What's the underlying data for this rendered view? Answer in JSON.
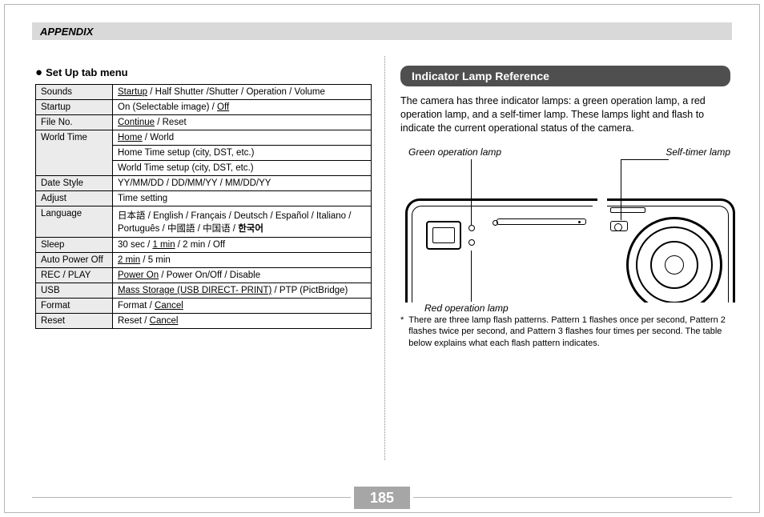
{
  "header": {
    "appendix": "APPENDIX"
  },
  "left": {
    "subhead": "Set Up tab menu",
    "rows": [
      {
        "label": "Sounds",
        "cells": [
          "<span class=\"u\">Startup</span> / Half Shutter /Shutter / Operation / Volume"
        ]
      },
      {
        "label": "Startup",
        "cells": [
          "On (Selectable image) / <span class=\"u\">Off</span>"
        ]
      },
      {
        "label": "File No.",
        "cells": [
          "<span class=\"u\">Continue</span> / Reset"
        ]
      },
      {
        "label": "World Time",
        "cells": [
          "<span class=\"u\">Home</span> / World",
          "Home Time setup (city, DST, etc.)",
          "World Time setup (city, DST, etc.)"
        ]
      },
      {
        "label": "Date Style",
        "cells": [
          "YY/MM/DD / DD/MM/YY / MM/DD/YY"
        ]
      },
      {
        "label": "Adjust",
        "cells": [
          "Time setting"
        ]
      },
      {
        "label": "Language",
        "cells": [
          "日本語 / English / Français / Deutsch / Español / Italiano / Português / 中國語 / 中国语 / <b>한국어</b>"
        ]
      },
      {
        "label": "Sleep",
        "cells": [
          "30 sec / <span class=\"u\">1 min</span> / 2 min / Off"
        ]
      },
      {
        "label": "Auto Power Off",
        "cells": [
          "<span class=\"u\">2 min</span> / 5 min"
        ]
      },
      {
        "label": "REC / PLAY",
        "cells": [
          "<span class=\"u\">Power On</span> / Power On/Off / Disable"
        ]
      },
      {
        "label": "USB",
        "cells": [
          "<span class=\"u\">Mass Storage (USB DIRECT- PRINT)</span> / PTP (PictBridge)"
        ]
      },
      {
        "label": "Format",
        "cells": [
          "Format / <span class=\"u\">Cancel</span>"
        ]
      },
      {
        "label": "Reset",
        "cells": [
          "Reset / <span class=\"u\">Cancel</span>"
        ]
      }
    ]
  },
  "right": {
    "section_title": "Indicator Lamp Reference",
    "paragraph": "The camera has three indicator lamps: a green operation lamp, a red operation lamp, and a self-timer lamp. These lamps light and flash to indicate the current operational status of the camera.",
    "labels": {
      "green": "Green operation lamp",
      "red": "Red operation lamp",
      "self": "Self-timer lamp"
    },
    "note": "There are three lamp flash patterns. Pattern 1 flashes once per second, Pattern 2 flashes twice per second, and Pattern 3 flashes four times per second. The table below explains what each flash pattern indicates."
  },
  "page_number": "185",
  "colors": {
    "header_bg": "#d9d9d9",
    "pill_bg": "#4f4f4f",
    "page_num_bg": "#a6a6a6",
    "cell_shade": "#ebebeb"
  }
}
